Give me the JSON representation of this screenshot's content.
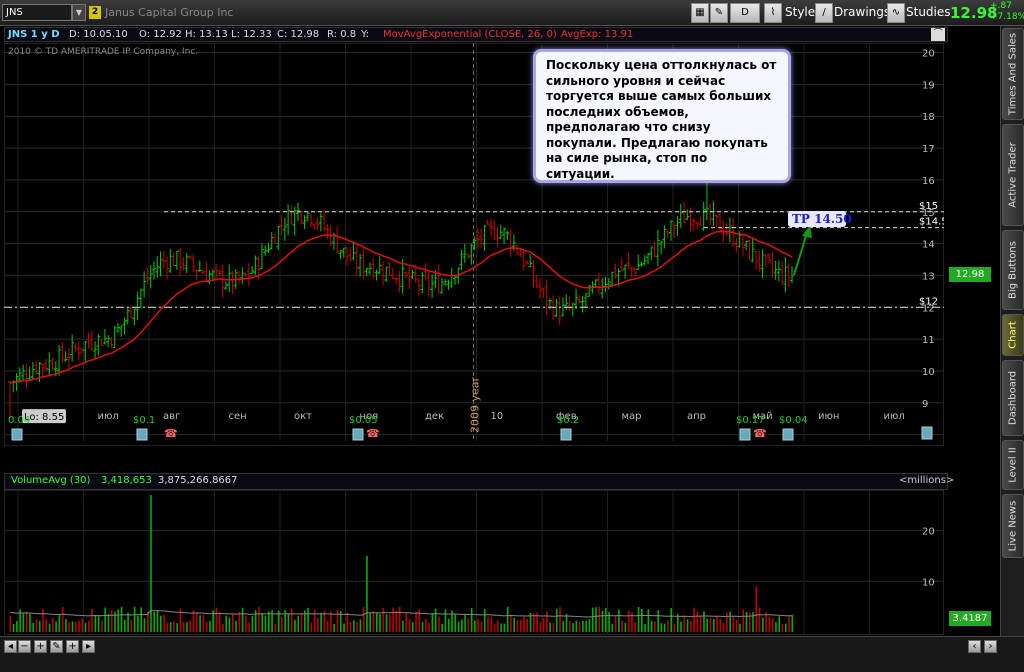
{
  "toolbar": {
    "symbol": "JNS",
    "link_number": "2",
    "company": "Janus Capital Group Inc",
    "interval_btn": "D",
    "style_label": "Style",
    "drawings_label": "Drawings",
    "studies_label": "Studies",
    "last_price": "12.98",
    "change_abs": "+.87",
    "change_pct": "+7.18%"
  },
  "header": {
    "symbol_period": "JNS 1 y D",
    "date": "D: 10.05.10",
    "open": "O: 12.92",
    "high": "H: 13.13",
    "low": "L: 12.33",
    "close": "C: 12.98",
    "range": "R: 0.8",
    "y": "Y:",
    "study": "MovAvgExponential (CLOSE, 26, 0)",
    "avg_value": "AvgExp: 13.91"
  },
  "watermark": "2010 © TD AMERITRADE IP Company, Inc.",
  "annotation_note": "     Поскольку цена оттолкнулась от сильного уровня и сейчас торгуется выше самых больших последних объемов, предполагаю что снизу покупали. Предлагаю покупать на силе рынка, стоп по ситуации.",
  "chart_labels": {
    "hi": "Hi: 16.06",
    "lo": "Lo: 8.55",
    "tp": "TP 14.50",
    "lvl15": "$15",
    "lvl145": "$14.5",
    "lvl12": "$12",
    "year_marker": "2009 year",
    "dividends": [
      "0.04",
      "$0.1",
      "$0.05",
      "$0.2",
      "$0.17",
      "$0.04"
    ],
    "unit": "<millions>"
  },
  "volume_header": {
    "name": "VolumeAvg (30)",
    "v1": "3,418,653",
    "v2": "3,875,266.8667"
  },
  "price_badge": "12.98",
  "volume_badge": "3.4187",
  "side_tabs": [
    "Times And Sales",
    "Active Trader",
    "Big Buttons",
    "Chart",
    "Dashboard",
    "Level II",
    "Live News"
  ],
  "colors": {
    "up": "#00cc00",
    "down": "#cc0000",
    "ema": "#e01010",
    "volume_up": "#00b000",
    "volume_down": "#c00000"
  },
  "chart_data": [
    {
      "type": "candlestick",
      "title": "JNS 1 y D",
      "x_labels": [
        "июн",
        "июл",
        "авг",
        "сен",
        "окт",
        "ноя",
        "дек",
        "10",
        "фев",
        "мар",
        "апр",
        "май",
        "июн",
        "июл"
      ],
      "y_ticks": [
        8,
        9,
        10,
        11,
        12,
        13,
        14,
        15,
        16,
        17,
        18,
        19,
        20
      ],
      "ylim": [
        7.8,
        20.3
      ],
      "series": [
        {
          "name": "JNS",
          "approx_closes_by_month_points": [
            {
              "x": "июн",
              "y": 10.2
            },
            {
              "x": "июл",
              "y": 11.0
            },
            {
              "x": "авг",
              "y": 13.5
            },
            {
              "x": "сен",
              "y": 12.8
            },
            {
              "x": "окт",
              "y": 15.0
            },
            {
              "x": "ноя",
              "y": 13.3
            },
            {
              "x": "дек",
              "y": 12.7
            },
            {
              "x": "10",
              "y": 14.4
            },
            {
              "x": "фев",
              "y": 11.9
            },
            {
              "x": "мар",
              "y": 13.2
            },
            {
              "x": "апр",
              "y": 14.9
            },
            {
              "x": "май",
              "y": 12.98
            }
          ]
        },
        {
          "name": "MovAvgExponential (CLOSE, 26, 0)",
          "last": 13.91
        }
      ],
      "levels": [
        15.0,
        14.5,
        12.0
      ],
      "high": 16.06,
      "low": 8.55,
      "target": 14.5
    },
    {
      "type": "bar",
      "title": "VolumeAvg (30)",
      "unit": "millions",
      "y_ticks": [
        10,
        20
      ],
      "ylim": [
        0,
        28
      ],
      "last_volume": 3.4187,
      "avg_volume": 3.8753,
      "peaks": [
        {
          "x": "июл",
          "y": 27
        },
        {
          "x": "ноя",
          "y": 15
        },
        {
          "x": "апр",
          "y": 9
        }
      ]
    }
  ]
}
